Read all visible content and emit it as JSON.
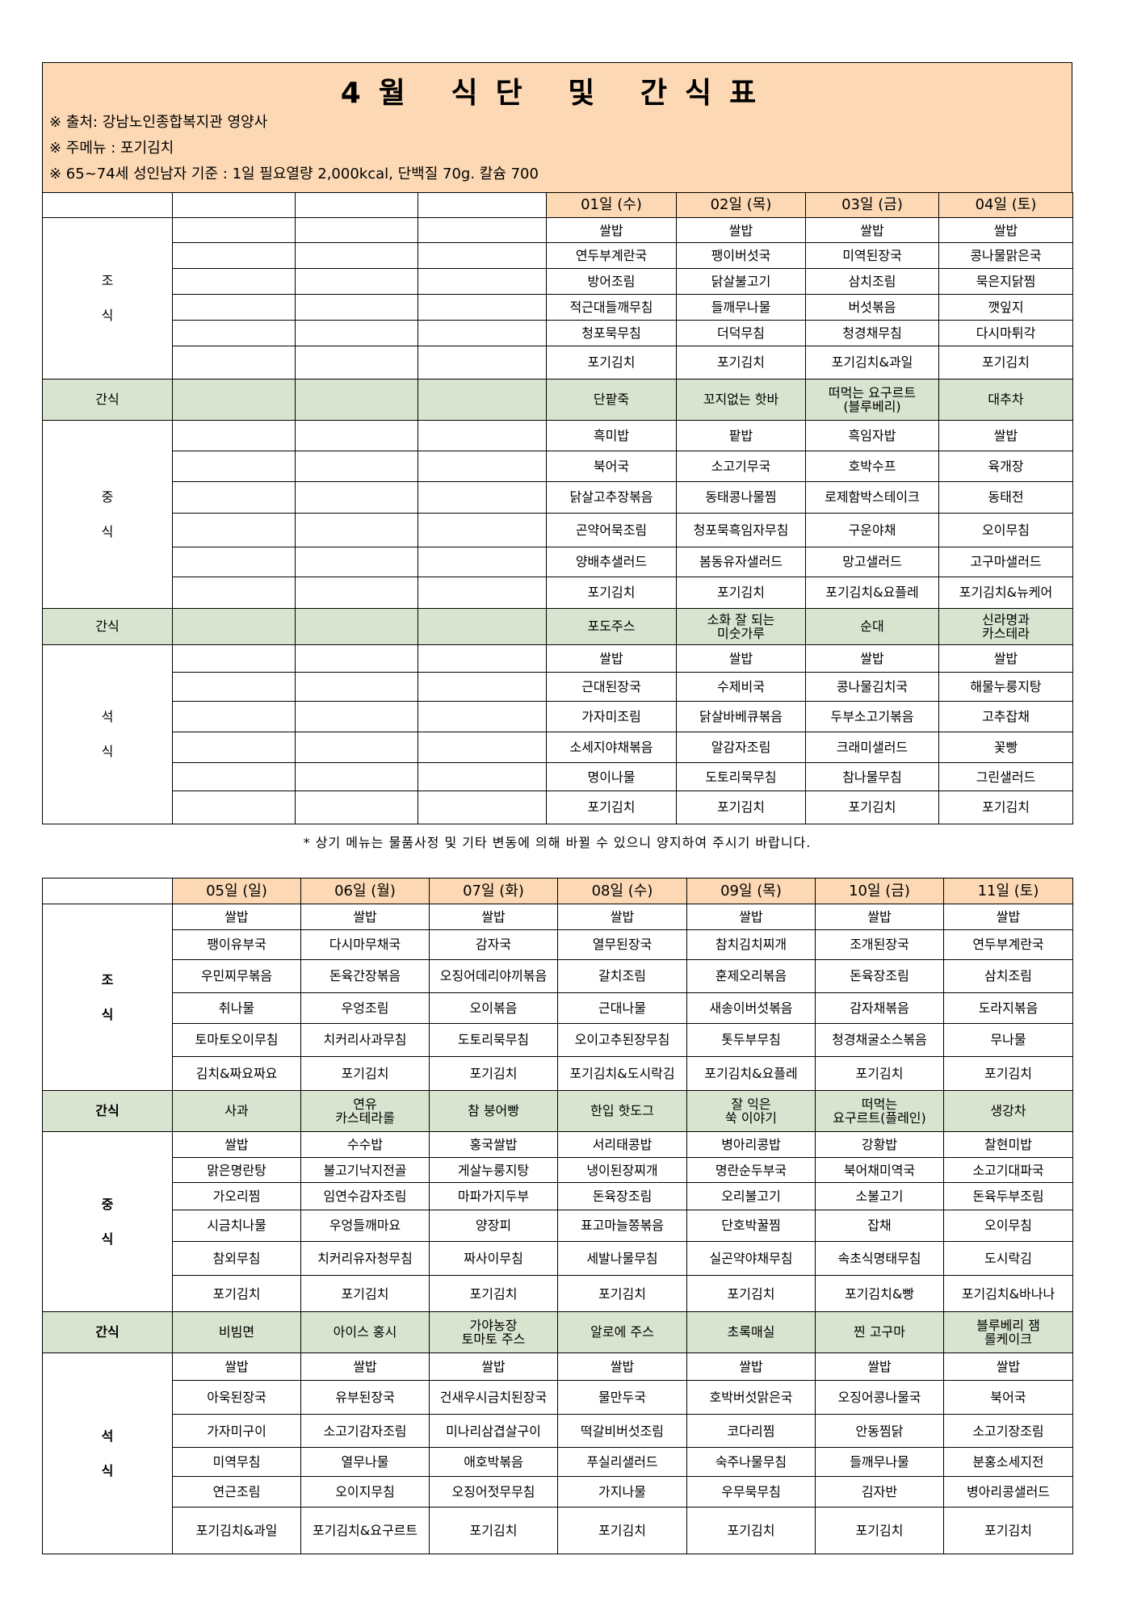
{
  "header": {
    "title": "4월 식단 및 간식표",
    "notes": [
      "※ 출처: 강남노인종합복지관 영양사",
      "※ 주메뉴 : 포기김치",
      "※ 65~74세 성인남자 기준 : 1일 필요열량 2,000kcal, 단백질 70g. 칼슘 700"
    ]
  },
  "table1": {
    "dates": [
      "01일 (수)",
      "02일 (목)",
      "03일 (금)",
      "04일 (토)"
    ],
    "sections": [
      {
        "label": [
          "조",
          "식"
        ],
        "rows": [
          [
            "쌀밥",
            "쌀밥",
            "쌀밥",
            "쌀밥"
          ],
          [
            "연두부계란국",
            "팽이버섯국",
            "미역된장국",
            "콩나물맑은국"
          ],
          [
            "방어조림",
            "닭살불고기",
            "삼치조림",
            "묵은지닭찜"
          ],
          [
            "적근대들깨무침",
            "들깨무나물",
            "버섯볶음",
            "깻잎지"
          ],
          [
            "청포묵무침",
            "더덕무침",
            "청경채무침",
            "다시마튀각"
          ],
          [
            "포기김치",
            "포기김치",
            "포기김치&과일",
            "포기김치"
          ]
        ]
      },
      {
        "label": [
          "간식"
        ],
        "rows": [
          [
            "단팥죽",
            "꼬지없는 핫바",
            "떠먹는 요구르트\n(블루베리)",
            "대추차"
          ]
        ]
      },
      {
        "label": [
          "중",
          "식"
        ],
        "rows": [
          [
            "흑미밥",
            "팥밥",
            "흑임자밥",
            "쌀밥"
          ],
          [
            "북어국",
            "소고기무국",
            "호박수프",
            "육개장"
          ],
          [
            "닭살고추장볶음",
            "동태콩나물찜",
            "로제함박스테이크",
            "동태전"
          ],
          [
            "곤약어묵조림",
            "청포묵흑임자무침",
            "구운야채",
            "오이무침"
          ],
          [
            "양배추샐러드",
            "봄동유자샐러드",
            "망고샐러드",
            "고구마샐러드"
          ],
          [
            "포기김치",
            "포기김치",
            "포기김치&요플레",
            "포기김치&뉴케어"
          ]
        ]
      },
      {
        "label": [
          "간식"
        ],
        "rows": [
          [
            "포도주스",
            "소화 잘 되는\n미숫가루",
            "순대",
            "신라명과\n카스테라"
          ]
        ]
      },
      {
        "label": [
          "석",
          "식"
        ],
        "rows": [
          [
            "쌀밥",
            "쌀밥",
            "쌀밥",
            "쌀밥"
          ],
          [
            "근대된장국",
            "수제비국",
            "콩나물김치국",
            "해물누룽지탕"
          ],
          [
            "가자미조림",
            "닭살바베큐볶음",
            "두부소고기볶음",
            "고추잡채"
          ],
          [
            "소세지야채볶음",
            "알감자조림",
            "크래미샐러드",
            "꽃빵"
          ],
          [
            "명이나물",
            "도토리묵무침",
            "참나물무침",
            "그린샐러드"
          ],
          [
            "포기김치",
            "포기김치",
            "포기김치",
            "포기김치"
          ]
        ]
      }
    ]
  },
  "footnote": "* 상기 메뉴는 물품사정 및 기타 변동에 의해 바뀔 수 있으니 양지하여 주시기 바랍니다.",
  "table2": {
    "dates": [
      "05일 (일)",
      "06일 (월)",
      "07일 (화)",
      "08일 (수)",
      "09일 (목)",
      "10일 (금)",
      "11일 (토)"
    ],
    "sections": [
      {
        "label": [
          "조",
          "식"
        ],
        "rows": [
          [
            "쌀밥",
            "쌀밥",
            "쌀밥",
            "쌀밥",
            "쌀밥",
            "쌀밥",
            "쌀밥"
          ],
          [
            "팽이유부국",
            "다시마무채국",
            "감자국",
            "열무된장국",
            "참치김치찌개",
            "조개된장국",
            "연두부계란국"
          ],
          [
            "우민찌무볶음",
            "돈육간장볶음",
            "오징어데리야끼볶음",
            "갈치조림",
            "훈제오리볶음",
            "돈육장조림",
            "삼치조림"
          ],
          [
            "취나물",
            "우엉조림",
            "오이볶음",
            "근대나물",
            "새송이버섯볶음",
            "감자채볶음",
            "도라지볶음"
          ],
          [
            "토마토오이무침",
            "치커리사과무침",
            "도토리묵무침",
            "오이고추된장무침",
            "톳두부무침",
            "청경채굴소스볶음",
            "무나물"
          ],
          [
            "김치&짜요짜요",
            "포기김치",
            "포기김치",
            "포기김치&도시락김",
            "포기김치&요플레",
            "포기김치",
            "포기김치"
          ]
        ]
      },
      {
        "label": [
          "간식"
        ],
        "rows": [
          [
            "사과",
            "연유\n카스테라롤",
            "참 붕어빵",
            "한입 핫도그",
            "잘 익은\n쑥 이야기",
            "떠먹는\n요구르트(플레인)",
            "생강차"
          ]
        ]
      },
      {
        "label": [
          "중",
          "식"
        ],
        "rows": [
          [
            "쌀밥",
            "수수밥",
            "홍국쌀밥",
            "서리태콩밥",
            "병아리콩밥",
            "강황밥",
            "찰현미밥"
          ],
          [
            "맑은명란탕",
            "불고기낙지전골",
            "게살누룽지탕",
            "냉이된장찌개",
            "명란순두부국",
            "북어채미역국",
            "소고기대파국"
          ],
          [
            "가오리찜",
            "임연수감자조림",
            "마파가지두부",
            "돈육장조림",
            "오리불고기",
            "소불고기",
            "돈육두부조림"
          ],
          [
            "시금치나물",
            "우엉들깨마요",
            "양장피",
            "표고마늘쫑볶음",
            "단호박꿀찜",
            "잡채",
            "오이무침"
          ],
          [
            "참외무침",
            "치커리유자청무침",
            "짜사이무침",
            "세발나물무침",
            "실곤약야채무침",
            "속초식명태무침",
            "도시락김"
          ],
          [
            "포기김치",
            "포기김치",
            "포기김치",
            "포기김치",
            "포기김치",
            "포기김치&빵",
            "포기김치&바나나"
          ]
        ]
      },
      {
        "label": [
          "간식"
        ],
        "rows": [
          [
            "비빔면",
            "아이스 홍시",
            "가야농장\n토마토 주스",
            "알로에 주스",
            "초록매실",
            "찐 고구마",
            "블루베리 잼\n롤케이크"
          ]
        ]
      },
      {
        "label": [
          "석",
          "식"
        ],
        "rows": [
          [
            "쌀밥",
            "쌀밥",
            "쌀밥",
            "쌀밥",
            "쌀밥",
            "쌀밥",
            "쌀밥"
          ],
          [
            "아욱된장국",
            "유부된장국",
            "건새우시금치된장국",
            "물만두국",
            "호박버섯맑은국",
            "오징어콩나물국",
            "북어국"
          ],
          [
            "가자미구이",
            "소고기감자조림",
            "미나리삼겹살구이",
            "떡갈비버섯조림",
            "코다리찜",
            "안동찜닭",
            "소고기장조림"
          ],
          [
            "미역무침",
            "열무나물",
            "애호박볶음",
            "푸실리샐러드",
            "숙주나물무침",
            "들깨무나물",
            "분홍소세지전"
          ],
          [
            "연근조림",
            "오이지무침",
            "오징어젓무무침",
            "가지나물",
            "우무묵무침",
            "김자반",
            "병아리콩샐러드"
          ],
          [
            "포기김치&과일",
            "포기김치&요구르트",
            "포기김치",
            "포기김치",
            "포기김치",
            "포기김치",
            "포기김치"
          ]
        ]
      }
    ]
  }
}
